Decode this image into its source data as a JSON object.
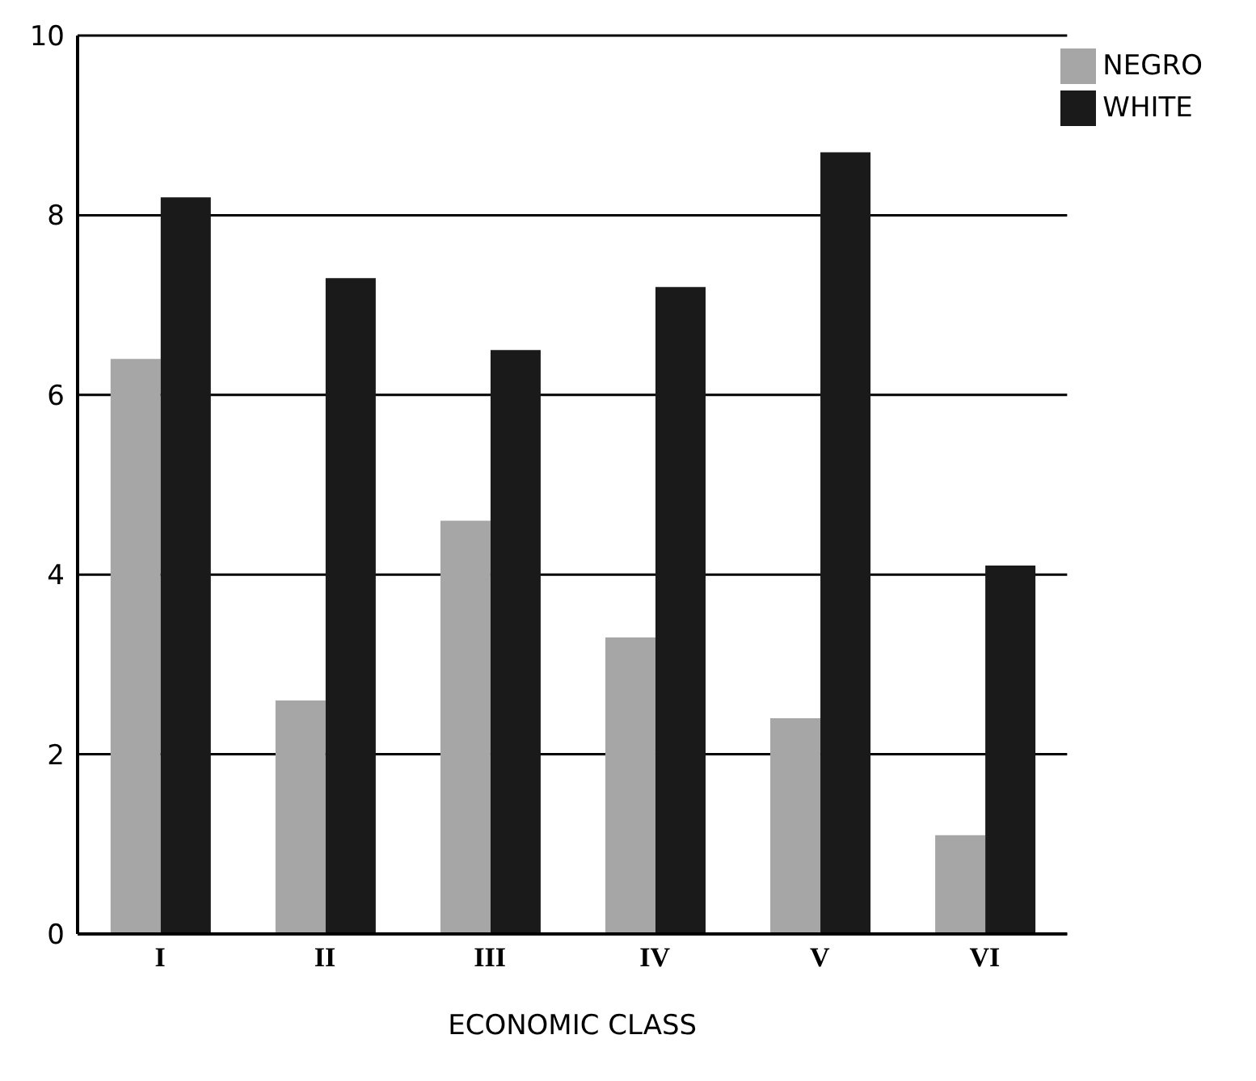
{
  "chart_data": {
    "type": "bar",
    "xlabel": "ECONOMIC CLASS",
    "categories": [
      "I",
      "II",
      "III",
      "IV",
      "V",
      "VI"
    ],
    "series": [
      {
        "name": "NEGRO",
        "color": "#a6a6a6",
        "values": [
          6.4,
          2.6,
          4.6,
          3.3,
          2.4,
          1.1
        ]
      },
      {
        "name": "WHITE",
        "color": "#1a1a1a",
        "values": [
          8.2,
          7.3,
          6.5,
          7.2,
          8.7,
          4.1
        ]
      }
    ],
    "ylim": [
      0,
      10
    ],
    "yticks": [
      0,
      2,
      4,
      6,
      8,
      10
    ],
    "grid": "y",
    "legend": "top right"
  }
}
